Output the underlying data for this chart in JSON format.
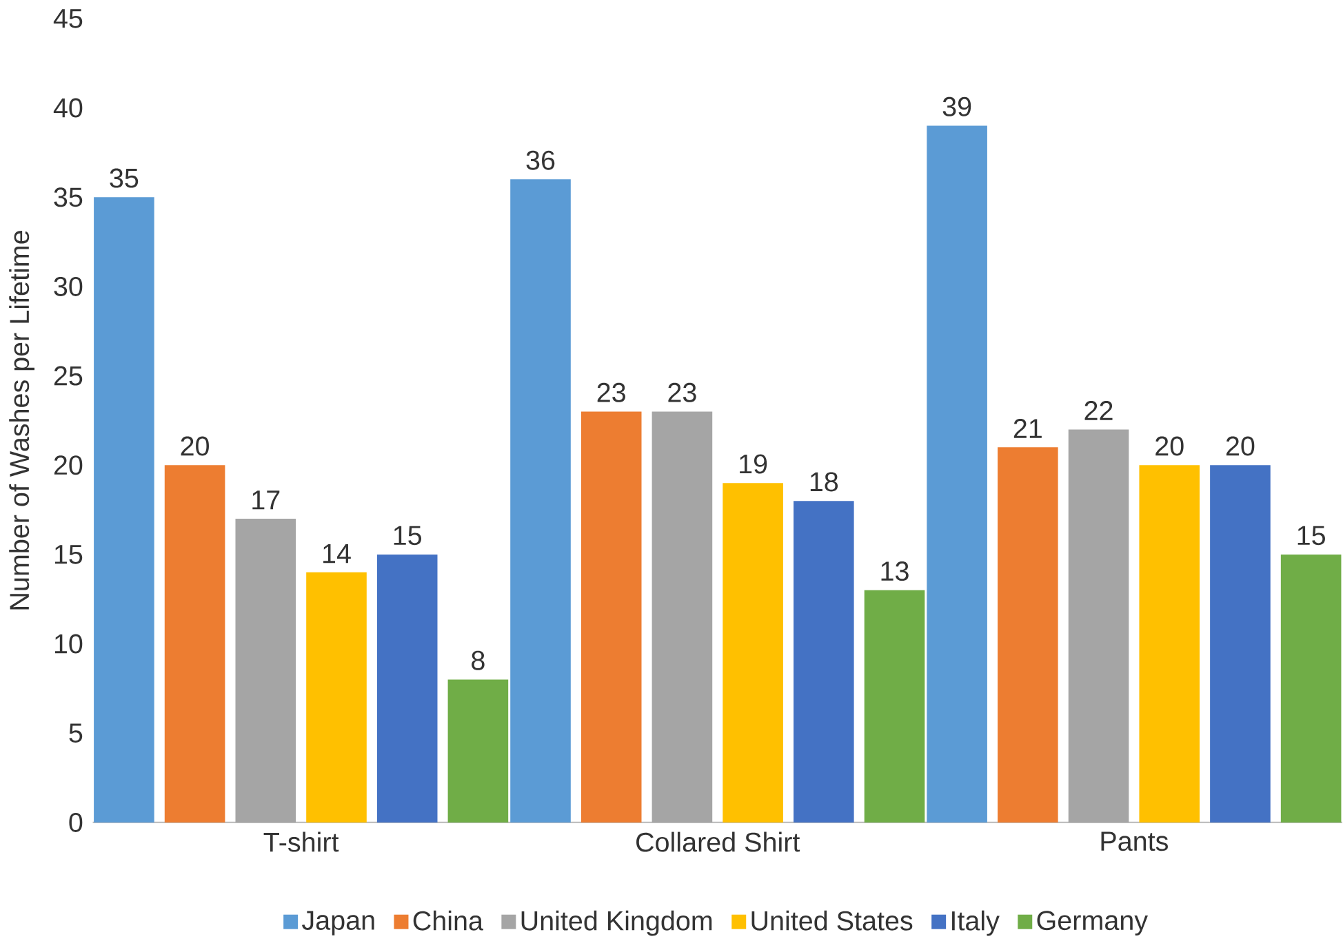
{
  "chart_data": {
    "type": "bar",
    "ylabel": "Number of Washes per Lifetime",
    "categories": [
      "T-shirt",
      "Collared Shirt",
      "Pants"
    ],
    "series": [
      {
        "name": "Japan",
        "color": "#5b9bd5",
        "values": [
          35,
          36,
          39
        ]
      },
      {
        "name": "China",
        "color": "#ed7d31",
        "values": [
          20,
          23,
          21
        ]
      },
      {
        "name": "United Kingdom",
        "color": "#a5a5a5",
        "values": [
          17,
          23,
          22
        ]
      },
      {
        "name": "United States",
        "color": "#ffc000",
        "values": [
          14,
          19,
          20
        ]
      },
      {
        "name": "Italy",
        "color": "#4472c4",
        "values": [
          15,
          18,
          20
        ]
      },
      {
        "name": "Germany",
        "color": "#70ad47",
        "values": [
          8,
          13,
          15
        ]
      }
    ],
    "ylim": [
      0,
      45
    ],
    "yticks": [
      0,
      5,
      10,
      15,
      20,
      25,
      30,
      35,
      40,
      45
    ],
    "data_labels": true,
    "grid": false,
    "legend": "bottom"
  }
}
